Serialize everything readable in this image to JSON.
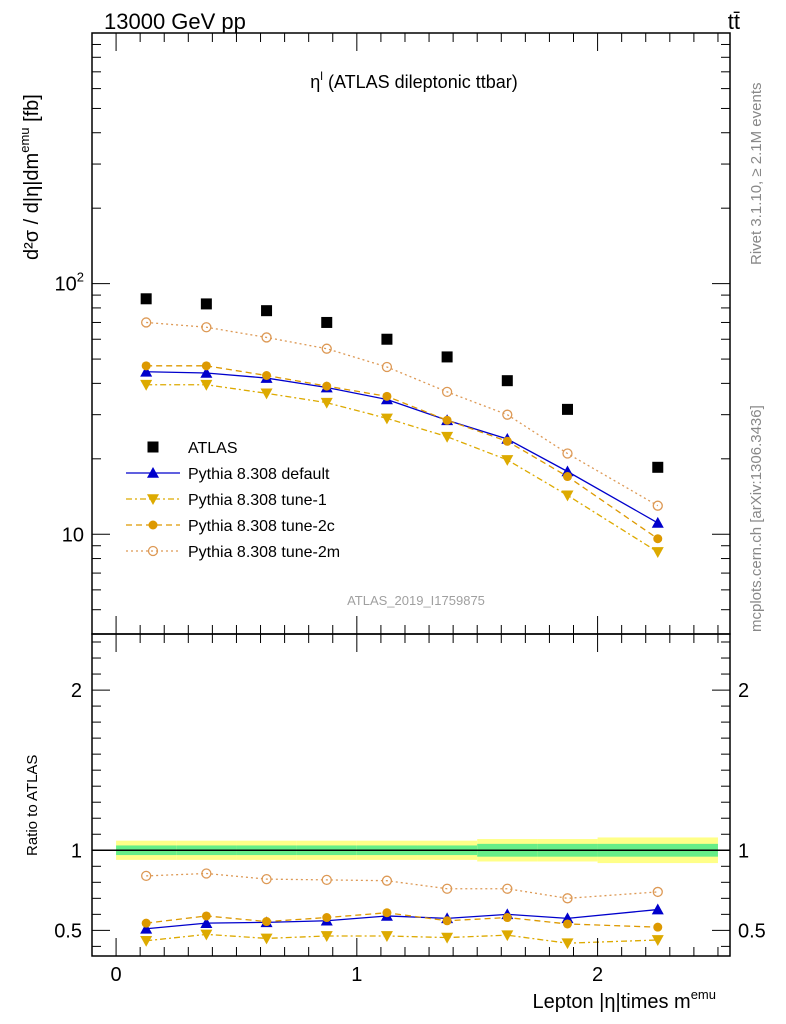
{
  "header": {
    "left": "13000 GeV pp",
    "right": "tt̄"
  },
  "side_labels": {
    "top": "Rivet 3.1.10, ≥ 2.1M events",
    "bottom": "mcplots.cern.ch [arXiv:1306.3436]"
  },
  "chart_data": {
    "type": "scatter",
    "title_main": "η",
    "title_sup": "l",
    "title_rest": " (ATLAS dileptonic ttbar)",
    "watermark": "ATLAS_2019_I1759875",
    "ylabel_main": "d²σ / d|η|dm",
    "ylabel_sup": "emu",
    "ylabel_unit": " [fb]",
    "xlabel_main": "Lepton |η|times m",
    "xlabel_sup": "emu",
    "ratio_ylabel": "Ratio to ATLAS",
    "xlim": [
      -0.1,
      2.55
    ],
    "ylim": [
      4.0,
      1000
    ],
    "yscale": "log",
    "ratio_ylim": [
      0.34,
      2.35
    ],
    "x_ticks": [
      0,
      1,
      2
    ],
    "x_tick_labels": [
      "0",
      "1",
      "2"
    ],
    "y_major_ticks": [
      10,
      100
    ],
    "y_tick_labels": [
      {
        "base": "10",
        "sup": ""
      },
      {
        "base": "10",
        "sup": "2"
      }
    ],
    "ratio_ticks": [
      0.5,
      1,
      2
    ],
    "ratio_tick_labels": [
      "0.5",
      "1",
      "2"
    ],
    "x": [
      0.125,
      0.375,
      0.625,
      0.875,
      1.125,
      1.375,
      1.625,
      1.875,
      2.25
    ],
    "x_err": [
      0.125,
      0.125,
      0.125,
      0.125,
      0.125,
      0.125,
      0.125,
      0.125,
      0.25
    ],
    "data": {
      "name": "ATLAS",
      "color": "#000000",
      "values": [
        87,
        83,
        78,
        70,
        60,
        51,
        41,
        31.5,
        18.5
      ],
      "band_inner": [
        0.03,
        0.03,
        0.03,
        0.03,
        0.03,
        0.03,
        0.04,
        0.04,
        0.04
      ],
      "band_outer": [
        0.06,
        0.06,
        0.06,
        0.06,
        0.06,
        0.06,
        0.07,
        0.07,
        0.08
      ],
      "band_inner_color": "#66ee88",
      "band_outer_color": "#ffff88"
    },
    "series": [
      {
        "name": "Pythia 8.308 default",
        "color": "#0000cc",
        "marker": "triangle-up",
        "dash": "",
        "values": [
          44.5,
          44,
          42,
          38.5,
          34.5,
          28.5,
          24,
          17.8,
          11.1
        ],
        "ratio": [
          0.51,
          0.545,
          0.55,
          0.56,
          0.59,
          0.575,
          0.6,
          0.575,
          0.63
        ]
      },
      {
        "name": "Pythia 8.308 tune-1",
        "color": "#ddaa00",
        "marker": "triangle-down",
        "dash": "6,3,2,3",
        "values": [
          39.5,
          39.5,
          36.5,
          33.5,
          29,
          24.5,
          19.8,
          14.3,
          8.5
        ],
        "ratio": [
          0.435,
          0.475,
          0.45,
          0.465,
          0.465,
          0.455,
          0.47,
          0.42,
          0.44
        ]
      },
      {
        "name": "Pythia 8.308 tune-2c",
        "color": "#dd9900",
        "marker": "circle-filled",
        "dash": "6,4",
        "values": [
          47,
          47,
          43,
          39,
          35.5,
          28.5,
          23.5,
          17,
          9.6
        ],
        "ratio": [
          0.545,
          0.59,
          0.555,
          0.58,
          0.61,
          0.56,
          0.58,
          0.54,
          0.52
        ]
      },
      {
        "name": "Pythia 8.308 tune-2m",
        "color": "#dd9955",
        "marker": "circle-open",
        "dash": "2,3",
        "values": [
          70,
          67,
          61,
          55,
          46.5,
          37,
          30,
          21,
          13
        ],
        "ratio": [
          0.84,
          0.855,
          0.82,
          0.815,
          0.81,
          0.76,
          0.76,
          0.7,
          0.74
        ]
      }
    ],
    "legend_position": "middle-left"
  }
}
